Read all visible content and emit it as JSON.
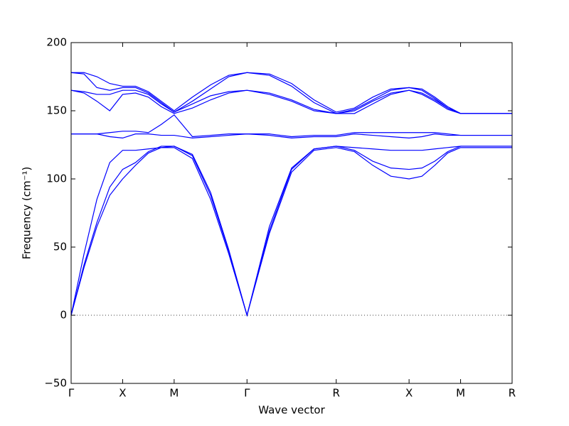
{
  "chart_data": {
    "type": "line",
    "xlabel": "Wave vector",
    "ylabel": "Frequency (cm⁻¹)",
    "x": [
      0,
      0.125,
      0.25,
      0.375,
      0.5,
      0.625,
      0.75,
      0.875,
      1.0,
      1.177,
      1.354,
      1.53,
      1.707,
      1.924,
      2.14,
      2.357,
      2.573,
      2.75,
      2.927,
      3.103,
      3.28,
      3.405,
      3.53,
      3.655,
      3.78,
      3.905,
      4.03,
      4.155,
      4.28
    ],
    "series": [
      {
        "color": "#0000ff",
        "values": [
          0,
          35,
          65,
          88,
          100,
          110,
          119,
          123,
          123,
          115,
          85,
          45,
          0,
          60,
          105,
          121,
          123,
          120,
          110,
          102,
          100,
          102,
          110,
          119,
          123,
          123,
          123,
          123,
          123
        ]
      },
      {
        "color": "#0000ff",
        "values": [
          0,
          37,
          68,
          94,
          107,
          112,
          120,
          124,
          124,
          117,
          88,
          47,
          0,
          62,
          107,
          122,
          124,
          121,
          113,
          108,
          107,
          108,
          113,
          120,
          124,
          124,
          124,
          124,
          124
        ]
      },
      {
        "color": "#0000ff",
        "values": [
          0,
          45,
          85,
          112,
          121,
          121,
          122,
          123,
          124,
          118,
          90,
          48,
          0,
          65,
          108,
          122,
          124,
          123,
          122,
          121,
          121,
          121,
          122,
          123,
          124,
          124,
          124,
          124,
          124
        ]
      },
      {
        "color": "#0000ff",
        "values": [
          133,
          133,
          133,
          131,
          130,
          133,
          133,
          132,
          132,
          130,
          131,
          132,
          133,
          132,
          130,
          131,
          131,
          133,
          132,
          131,
          130,
          131,
          133,
          132,
          132,
          132,
          132,
          132,
          132
        ]
      },
      {
        "color": "#0000ff",
        "values": [
          133,
          133,
          133,
          134,
          135,
          135,
          134,
          140,
          147,
          131,
          132,
          133,
          133,
          133,
          131,
          132,
          132,
          134,
          134,
          134,
          134,
          134,
          134,
          133,
          132,
          132,
          132,
          132,
          132
        ]
      },
      {
        "color": "#0000ff",
        "values": [
          165,
          163,
          157,
          150,
          162,
          163,
          160,
          153,
          148,
          152,
          158,
          163,
          165,
          162,
          157,
          150,
          148,
          148,
          155,
          162,
          165,
          162,
          157,
          151,
          148,
          148,
          148,
          148,
          148
        ]
      },
      {
        "color": "#0000ff",
        "values": [
          165,
          164,
          162,
          162,
          165,
          165,
          162,
          155,
          149,
          155,
          161,
          164,
          165,
          163,
          158,
          151,
          148,
          150,
          157,
          163,
          165,
          163,
          158,
          152,
          148,
          148,
          148,
          148,
          148
        ]
      },
      {
        "color": "#0000ff",
        "values": [
          178,
          177,
          167,
          165,
          167,
          167,
          163,
          156,
          149,
          157,
          166,
          175,
          178,
          176,
          168,
          156,
          148,
          151,
          158,
          165,
          167,
          165,
          159,
          152,
          148,
          148,
          148,
          148,
          148
        ]
      },
      {
        "color": "#0000ff",
        "values": [
          178,
          178,
          175,
          170,
          168,
          168,
          164,
          157,
          150,
          160,
          169,
          176,
          178,
          177,
          170,
          158,
          149,
          152,
          160,
          166,
          167,
          166,
          160,
          153,
          148,
          148,
          148,
          148,
          148
        ]
      }
    ],
    "xlim": [
      0,
      4.28
    ],
    "xticks": [
      {
        "value": 0,
        "label": "Γ"
      },
      {
        "value": 0.5,
        "label": "X"
      },
      {
        "value": 1.0,
        "label": "M"
      },
      {
        "value": 1.707,
        "label": "Γ"
      },
      {
        "value": 2.573,
        "label": "R"
      },
      {
        "value": 3.28,
        "label": "X"
      },
      {
        "value": 3.78,
        "label": "M"
      },
      {
        "value": 4.28,
        "label": "R"
      }
    ],
    "ylim": [
      -50,
      200
    ],
    "yticks": [
      {
        "value": -50,
        "label": "−50"
      },
      0,
      50,
      100,
      150,
      200
    ],
    "zero_line": true
  }
}
